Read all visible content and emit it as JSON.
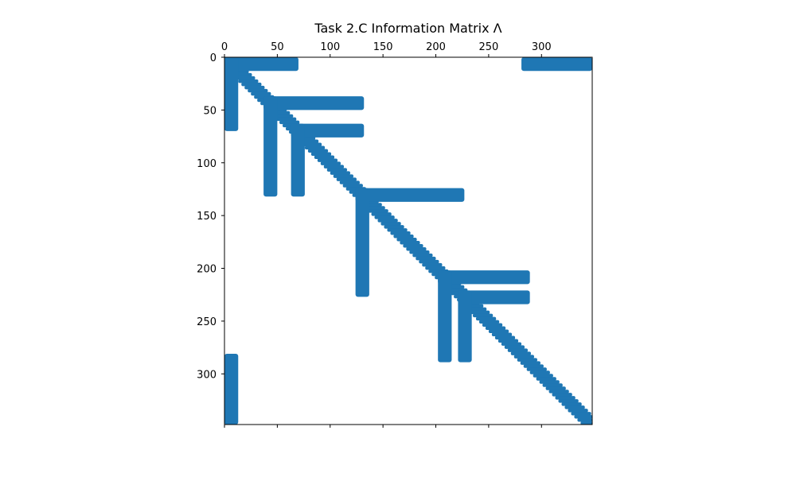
{
  "chart_data": {
    "type": "heatmap",
    "style": "sparsity-pattern (matplotlib spy)",
    "title": "Task 2.C Information Matrix Λ",
    "matrix_size": [
      348,
      348
    ],
    "xlim": [
      0,
      348
    ],
    "ylim": [
      348,
      0
    ],
    "x_axis_position": "top",
    "x_ticks": [
      0,
      50,
      100,
      150,
      200,
      250,
      300
    ],
    "y_ticks": [
      0,
      50,
      100,
      150,
      200,
      250,
      300
    ],
    "grid": false,
    "legend": "none",
    "marker_color": "#1f77b4",
    "nonzero_blocks": [
      {
        "rows": [
          0,
          13
        ],
        "cols": [
          0,
          70
        ]
      },
      {
        "rows": [
          0,
          13
        ],
        "cols": [
          281,
          348
        ]
      },
      {
        "rows": [
          0,
          70
        ],
        "cols": [
          0,
          13
        ]
      },
      {
        "rows": [
          281,
          348
        ],
        "cols": [
          0,
          13
        ]
      },
      {
        "rows": [
          37,
          50
        ],
        "cols": [
          37,
          132
        ]
      },
      {
        "rows": [
          37,
          132
        ],
        "cols": [
          37,
          50
        ]
      },
      {
        "rows": [
          63,
          76
        ],
        "cols": [
          63,
          132
        ]
      },
      {
        "rows": [
          63,
          132
        ],
        "cols": [
          63,
          76
        ]
      },
      {
        "rows": [
          124,
          137
        ],
        "cols": [
          124,
          227
        ]
      },
      {
        "rows": [
          124,
          227
        ],
        "cols": [
          124,
          137
        ]
      },
      {
        "rows": [
          202,
          215
        ],
        "cols": [
          202,
          289
        ]
      },
      {
        "rows": [
          202,
          289
        ],
        "cols": [
          202,
          215
        ]
      },
      {
        "rows": [
          221,
          234
        ],
        "cols": [
          221,
          289
        ]
      },
      {
        "rows": [
          221,
          289
        ],
        "cols": [
          221,
          234
        ]
      }
    ],
    "diagonal_band": {
      "start": 0,
      "end": 348,
      "half_width": 8
    }
  }
}
